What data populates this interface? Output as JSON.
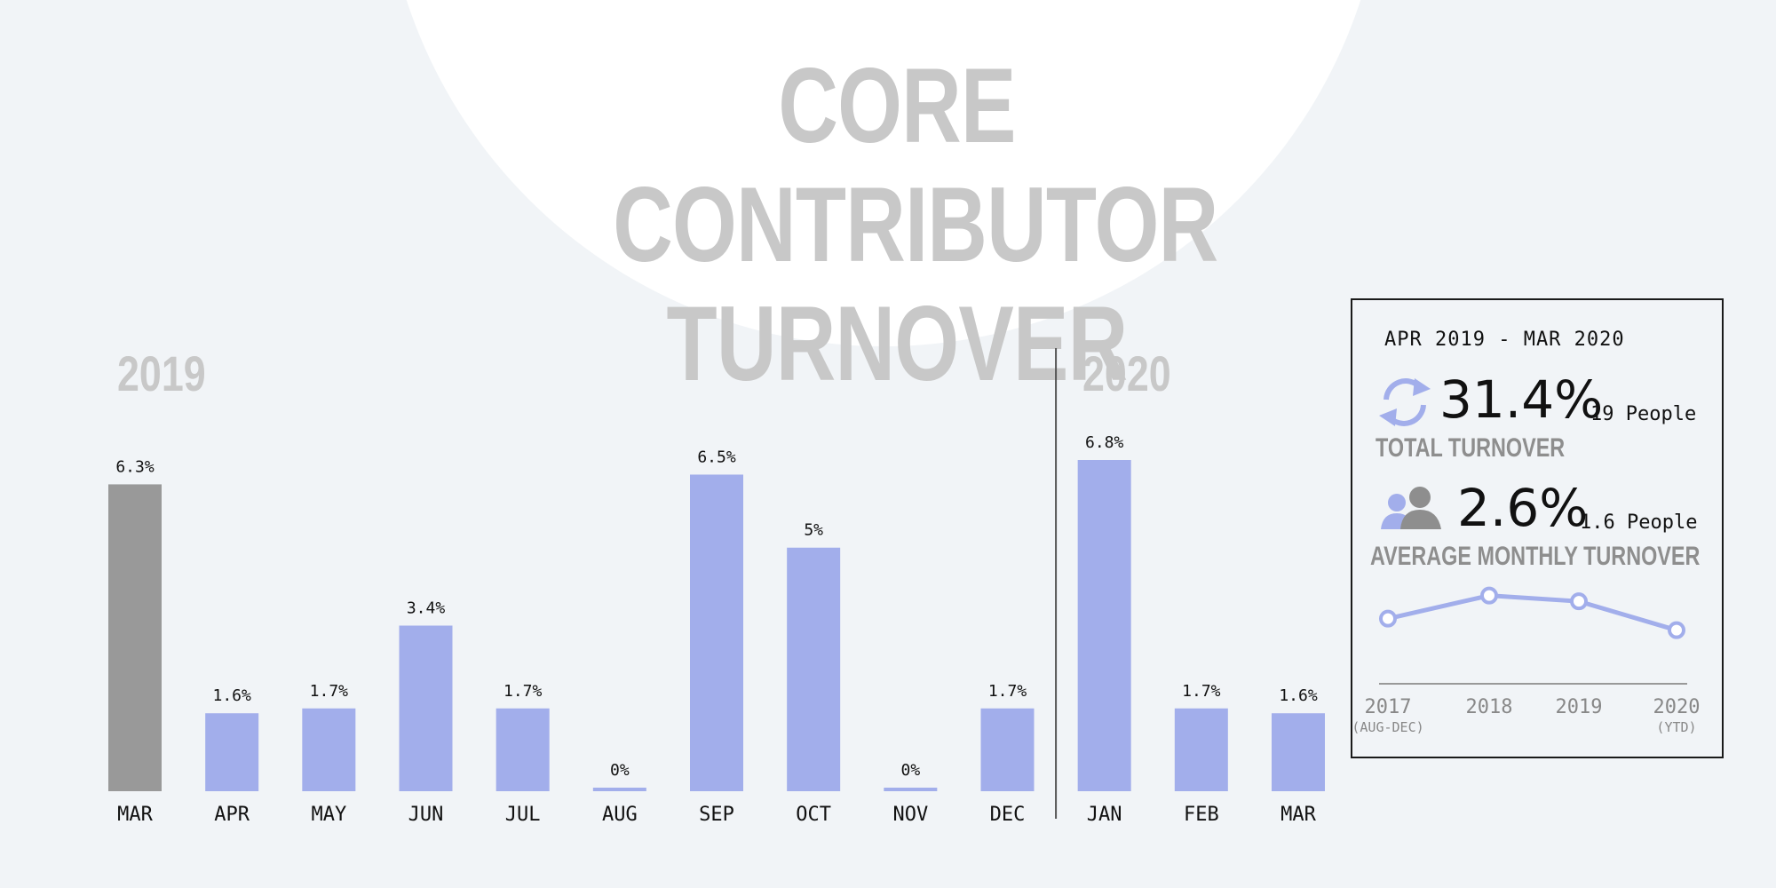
{
  "title_line1": "CORE CONTRIBUTOR",
  "title_line2": "TURNOVER",
  "year_2019": "2019",
  "year_2020": "2020",
  "chart_data": [
    {
      "type": "bar",
      "categories": [
        "MAR",
        "APR",
        "MAY",
        "JUN",
        "JUL",
        "AUG",
        "SEP",
        "OCT",
        "NOV",
        "DEC",
        "JAN",
        "FEB",
        "MAR"
      ],
      "values": [
        6.3,
        1.6,
        1.7,
        3.4,
        1.7,
        0,
        6.5,
        5,
        0,
        1.7,
        6.8,
        1.7,
        1.6
      ],
      "value_labels": [
        "6.3%",
        "1.6%",
        "1.7%",
        "3.4%",
        "1.7%",
        "0%",
        "6.5%",
        "5%",
        "0%",
        "1.7%",
        "6.8%",
        "1.7%",
        "1.6%"
      ],
      "bar_colors": [
        "#999999",
        "#a2aeeb",
        "#a2aeeb",
        "#a2aeeb",
        "#a2aeeb",
        "#a2aeeb",
        "#a2aeeb",
        "#a2aeeb",
        "#a2aeeb",
        "#a2aeeb",
        "#a2aeeb",
        "#a2aeeb",
        "#a2aeeb"
      ],
      "groups": [
        "2019",
        "2020"
      ],
      "ylim": [
        0,
        6.8
      ]
    },
    {
      "type": "line",
      "categories": [
        "2017",
        "2018",
        "2019",
        "2020"
      ],
      "sublabels": [
        "(AUG-DEC)",
        "",
        "",
        "(YTD)"
      ],
      "values": [
        2.0,
        2.6,
        2.45,
        1.7
      ],
      "color": "#a2aeeb"
    }
  ],
  "stats": {
    "period": "APR 2019 - MAR 2020",
    "total_value": "31.4%",
    "total_people": "19 People",
    "total_caption": "TOTAL TURNOVER",
    "avg_value": "2.6%",
    "avg_people": "1.6 People",
    "avg_caption": "AVERAGE MONTHLY TURNOVER"
  },
  "colors": {
    "accent": "#a2aeeb",
    "gray_bar": "#999999",
    "title": "#c8c8c8",
    "background": "#f1f4f7"
  },
  "icons": {
    "total": "refresh-icon",
    "avg": "people-icon"
  }
}
